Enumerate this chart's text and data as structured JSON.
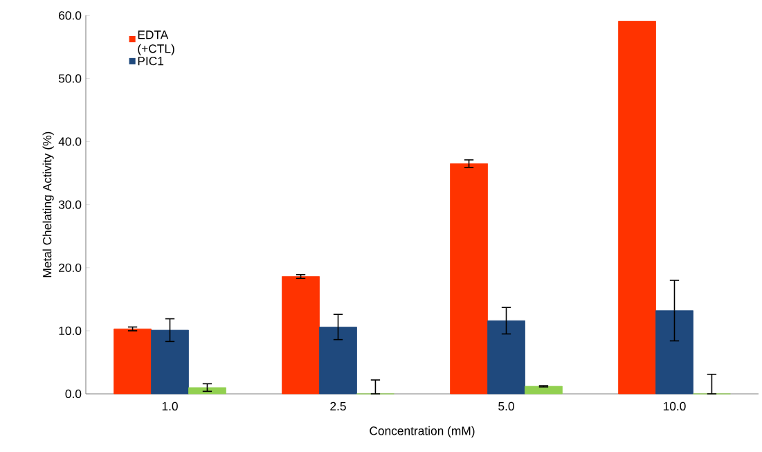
{
  "chart_data": {
    "type": "bar",
    "xlabel": "Concentration  (mM)",
    "ylabel": "Metal Chelating Activity (%)",
    "categories": [
      "1.0",
      "2.5",
      "5.0",
      "10.0"
    ],
    "series": [
      {
        "name": "EDTA (+CTL)",
        "color": "#ff3300",
        "values": [
          10.3,
          18.6,
          36.5,
          59.1
        ],
        "errors": [
          0.3,
          0.3,
          0.6,
          null
        ]
      },
      {
        "name": "PIC1",
        "color": "#1f497d",
        "values": [
          10.1,
          10.6,
          11.6,
          13.2
        ],
        "errors": [
          1.8,
          2.0,
          2.1,
          4.8
        ]
      },
      {
        "color": "#92d050",
        "values": [
          1.0,
          0,
          1.2,
          0
        ],
        "errors": [
          0.6,
          [
            0,
            2.2
          ],
          0.1,
          [
            0,
            3.1
          ]
        ]
      }
    ],
    "ylim": [
      0,
      60
    ],
    "yticks": [
      {
        "value": 0,
        "label": "0.0"
      },
      {
        "value": 10,
        "label": "10.0"
      },
      {
        "value": 20,
        "label": "20.0"
      },
      {
        "value": 30,
        "label": "30.0"
      },
      {
        "value": 40,
        "label": "40.0"
      },
      {
        "value": 50,
        "label": "50.0"
      },
      {
        "value": 60,
        "label": "60.0"
      }
    ],
    "grid": false,
    "legend": "top left"
  }
}
